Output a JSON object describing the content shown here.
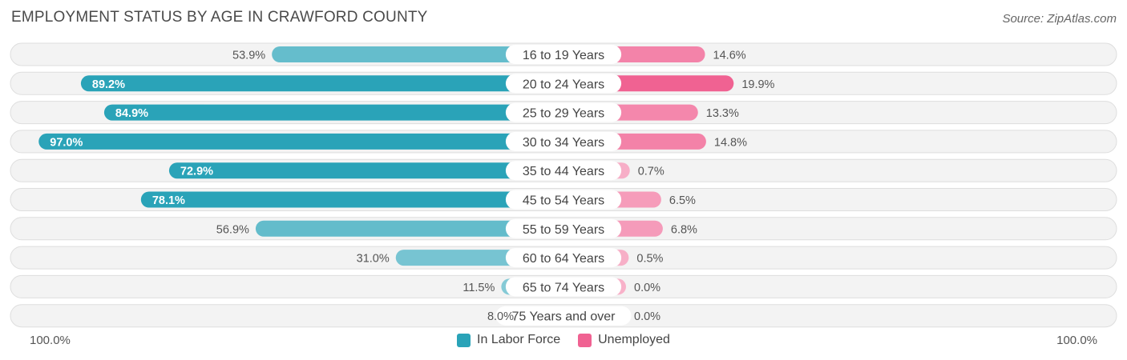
{
  "header": {
    "title": "EMPLOYMENT STATUS BY AGE IN CRAWFORD COUNTY",
    "source": "Source: ZipAtlas.com"
  },
  "axis": {
    "left_label": "100.0%",
    "right_label": "100.0%"
  },
  "legend": {
    "labor_force": "In Labor Force",
    "unemployed": "Unemployed"
  },
  "colors": {
    "labor_force": "#2aa3b8",
    "unemployed": "#f06292"
  },
  "chart_data": {
    "type": "bar",
    "title": "EMPLOYMENT STATUS BY AGE IN CRAWFORD COUNTY",
    "xlim": [
      0,
      100
    ],
    "categories": [
      "16 to 19 Years",
      "20 to 24 Years",
      "25 to 29 Years",
      "30 to 34 Years",
      "35 to 44 Years",
      "45 to 54 Years",
      "55 to 59 Years",
      "60 to 64 Years",
      "65 to 74 Years",
      "75 Years and over"
    ],
    "series": [
      {
        "name": "In Labor Force",
        "values": [
          53.9,
          89.2,
          84.9,
          97.0,
          72.9,
          78.1,
          56.9,
          31.0,
          11.5,
          8.0
        ],
        "labels": [
          "53.9%",
          "89.2%",
          "84.9%",
          "97.0%",
          "72.9%",
          "78.1%",
          "56.9%",
          "31.0%",
          "11.5%",
          "8.0%"
        ]
      },
      {
        "name": "Unemployed",
        "values": [
          14.6,
          19.9,
          13.3,
          14.8,
          0.7,
          6.5,
          6.8,
          0.5,
          0.0,
          0.0
        ],
        "labels": [
          "14.6%",
          "19.9%",
          "13.3%",
          "14.8%",
          "0.7%",
          "6.5%",
          "6.8%",
          "0.5%",
          "0.0%",
          "0.0%"
        ]
      }
    ]
  }
}
